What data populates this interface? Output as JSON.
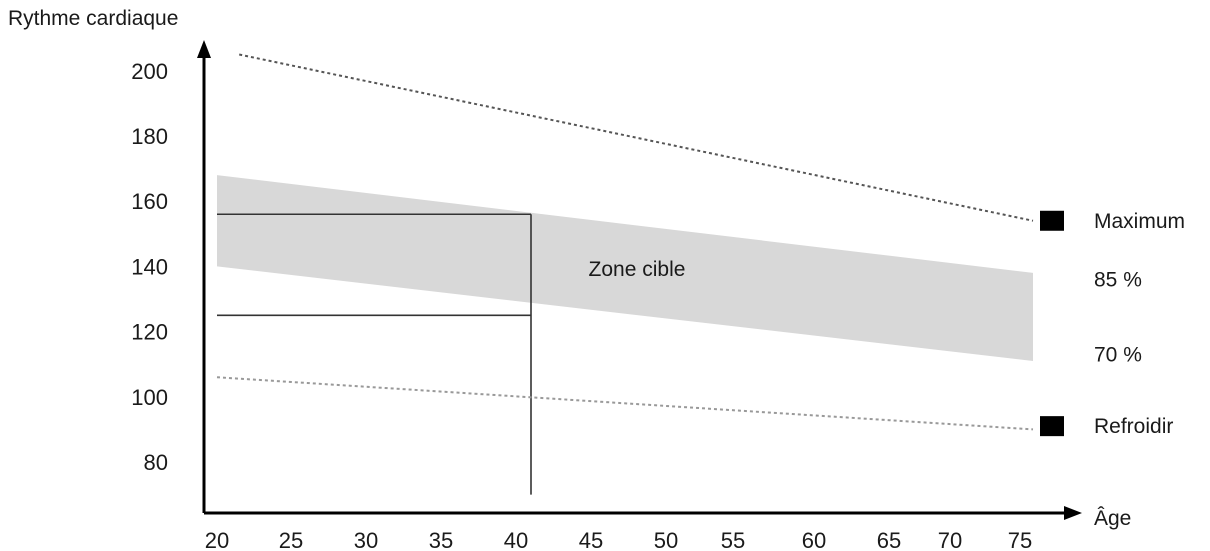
{
  "chart_data": {
    "type": "line",
    "ylabel": "Rythme cardiaque",
    "xlabel": "Âge",
    "x_ticks": [
      20,
      25,
      30,
      35,
      40,
      45,
      50,
      55,
      60,
      65,
      70,
      75
    ],
    "y_ticks": [
      80,
      100,
      120,
      140,
      160,
      180,
      200
    ],
    "xlim": [
      20,
      77
    ],
    "ylim": [
      70,
      206
    ],
    "series": [
      {
        "name": "Maximum",
        "style": "dotted",
        "color": "#555555",
        "x": [
          21.5,
          76
        ],
        "y": [
          205,
          154
        ]
      },
      {
        "name": "Refroidir",
        "style": "dotted",
        "color": "#999999",
        "x": [
          20,
          76
        ],
        "y": [
          106,
          90
        ]
      }
    ],
    "band": {
      "label": "Zone cible",
      "color": "#d8d8d8",
      "upper_name": "85 %",
      "lower_name": "70 %",
      "x": [
        20,
        76
      ],
      "upper": [
        168,
        138
      ],
      "lower": [
        140,
        111
      ]
    },
    "reference_lines": [
      {
        "kind": "vertical",
        "x": 41,
        "y_from": 70,
        "y_to": 156
      },
      {
        "kind": "horizontal",
        "y": 156,
        "x_from": 20,
        "x_to": 41
      },
      {
        "kind": "horizontal",
        "y": 125,
        "x_from": 20,
        "x_to": 41
      }
    ],
    "legend_markers": [
      {
        "label": "Maximum",
        "y": 154,
        "marker": true
      },
      {
        "label": "85 %",
        "y": 136,
        "marker": false
      },
      {
        "label": "70 %",
        "y": 113,
        "marker": false
      },
      {
        "label": "Refroidir",
        "y": 91,
        "marker": true
      }
    ]
  }
}
